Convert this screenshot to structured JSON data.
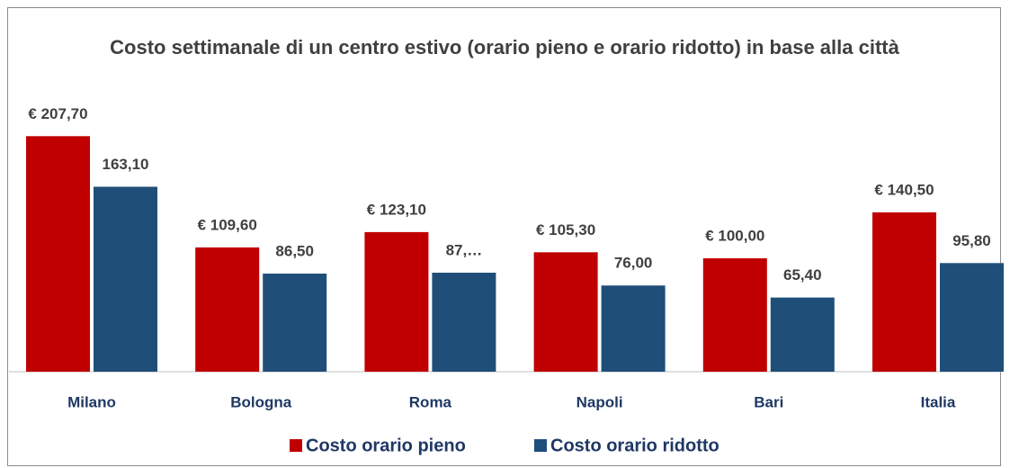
{
  "chart_data": {
    "type": "bar",
    "title": "Costo settimanale di un centro estivo (orario pieno e orario ridotto) in base alla città",
    "categories": [
      "Milano",
      "Bologna",
      "Roma",
      "Napoli",
      "Bari",
      "Italia"
    ],
    "series": [
      {
        "name": "Costo orario pieno",
        "color": "#c00000",
        "values": [
          207.7,
          109.6,
          123.1,
          105.3,
          100.0,
          140.5
        ],
        "value_labels": [
          "€ 207,70",
          "€ 109,60",
          "€ 123,10",
          "€ 105,30",
          "€ 100,00",
          "€ 140,50"
        ]
      },
      {
        "name": "Costo orario ridotto",
        "color": "#1f4e79",
        "values": [
          163.1,
          86.5,
          87.3,
          76.0,
          65.4,
          95.8
        ],
        "value_labels": [
          "163,10",
          "86,50",
          "87,…",
          "76,00",
          "65,40",
          "95,80"
        ]
      }
    ],
    "ylim": [
      0,
      250
    ],
    "grid": false,
    "legend": "bottom"
  }
}
